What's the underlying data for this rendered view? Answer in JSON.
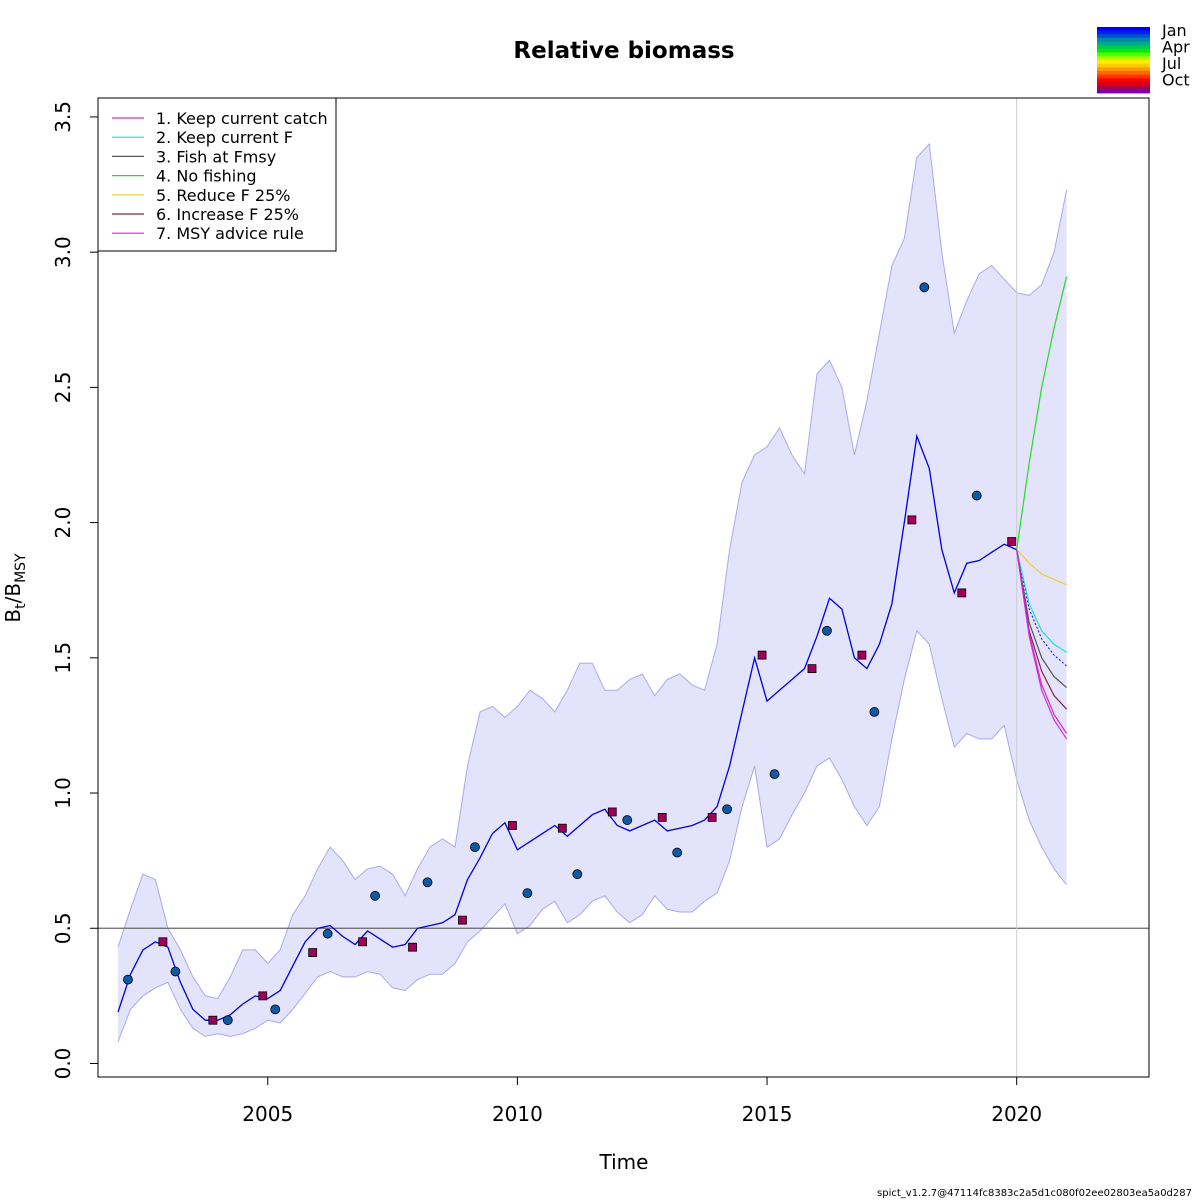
{
  "chart_data": {
    "type": "line",
    "title": "Relative biomass",
    "xlabel": "Time",
    "ylabel_main": "B",
    "ylabel_sub1": "t",
    "ylabel_sep": "/B",
    "ylabel_sub2": "MSY",
    "xlim": [
      2001.6,
      2022.65
    ],
    "ylim": [
      -0.05,
      3.57
    ],
    "x_ticks": [
      2005,
      2010,
      2015,
      2020
    ],
    "x_tick_labels": [
      "2005",
      "2010",
      "2015",
      "2020"
    ],
    "y_ticks": [
      0.0,
      0.5,
      1.0,
      1.5,
      2.0,
      2.5,
      3.0,
      3.5
    ],
    "y_tick_labels": [
      "0.0",
      "0.5",
      "1.0",
      "1.5",
      "2.0",
      "2.5",
      "3.0",
      "3.5"
    ],
    "reference_line": {
      "y": 0.5,
      "color": "#666666"
    },
    "forecast_start": 2020.0,
    "footer": "spict_v1.2.7@47114fc8383c2a5d1c080f02ee02803ea5a0d287",
    "colors": {
      "ci_fill": "#e3e3fb",
      "ci_line": "#a9a9ee",
      "estimate": "#0000dd",
      "circle_fill": "#0d5aa7",
      "square_fill": "#a0005a"
    },
    "estimate": {
      "x": [
        2002.0,
        2002.25,
        2002.5,
        2002.75,
        2003.0,
        2003.25,
        2003.5,
        2003.75,
        2004.0,
        2004.25,
        2004.5,
        2004.75,
        2005.0,
        2005.25,
        2005.5,
        2005.75,
        2006.0,
        2006.25,
        2006.5,
        2006.75,
        2007.0,
        2007.25,
        2007.5,
        2007.75,
        2008.0,
        2008.25,
        2008.5,
        2008.75,
        2009.0,
        2009.25,
        2009.5,
        2009.75,
        2010.0,
        2010.25,
        2010.5,
        2010.75,
        2011.0,
        2011.25,
        2011.5,
        2011.75,
        2012.0,
        2012.25,
        2012.5,
        2012.75,
        2013.0,
        2013.25,
        2013.5,
        2013.75,
        2014.0,
        2014.25,
        2014.5,
        2014.75,
        2015.0,
        2015.25,
        2015.5,
        2015.75,
        2016.0,
        2016.25,
        2016.5,
        2016.75,
        2017.0,
        2017.25,
        2017.5,
        2017.75,
        2018.0,
        2018.25,
        2018.5,
        2018.75,
        2019.0,
        2019.25,
        2019.5,
        2019.75,
        2020.0
      ],
      "y": [
        0.19,
        0.33,
        0.42,
        0.45,
        0.43,
        0.3,
        0.2,
        0.16,
        0.16,
        0.18,
        0.22,
        0.25,
        0.24,
        0.27,
        0.36,
        0.45,
        0.5,
        0.51,
        0.47,
        0.44,
        0.49,
        0.46,
        0.43,
        0.44,
        0.5,
        0.51,
        0.52,
        0.55,
        0.68,
        0.76,
        0.85,
        0.89,
        0.79,
        0.82,
        0.85,
        0.88,
        0.84,
        0.88,
        0.92,
        0.94,
        0.88,
        0.86,
        0.88,
        0.9,
        0.86,
        0.87,
        0.88,
        0.9,
        0.95,
        1.1,
        1.3,
        1.5,
        1.34,
        1.38,
        1.42,
        1.46,
        1.58,
        1.72,
        1.68,
        1.5,
        1.46,
        1.55,
        1.7,
        2.0,
        2.32,
        2.2,
        1.9,
        1.74,
        1.85,
        1.86,
        1.89,
        1.92,
        1.9
      ]
    },
    "ci_upper": {
      "x": [
        2002.0,
        2002.25,
        2002.5,
        2002.75,
        2003.0,
        2003.25,
        2003.5,
        2003.75,
        2004.0,
        2004.25,
        2004.5,
        2004.75,
        2005.0,
        2005.25,
        2005.5,
        2005.75,
        2006.0,
        2006.25,
        2006.5,
        2006.75,
        2007.0,
        2007.25,
        2007.5,
        2007.75,
        2008.0,
        2008.25,
        2008.5,
        2008.75,
        2009.0,
        2009.25,
        2009.5,
        2009.75,
        2010.0,
        2010.25,
        2010.5,
        2010.75,
        2011.0,
        2011.25,
        2011.5,
        2011.75,
        2012.0,
        2012.25,
        2012.5,
        2012.75,
        2013.0,
        2013.25,
        2013.5,
        2013.75,
        2014.0,
        2014.25,
        2014.5,
        2014.75,
        2015.0,
        2015.25,
        2015.5,
        2015.75,
        2016.0,
        2016.25,
        2016.5,
        2016.75,
        2017.0,
        2017.25,
        2017.5,
        2017.75,
        2018.0,
        2018.25,
        2018.5,
        2018.75,
        2019.0,
        2019.25,
        2019.5,
        2019.75,
        2020.0,
        2020.25,
        2020.5,
        2020.75,
        2021.0
      ],
      "y": [
        0.43,
        0.57,
        0.7,
        0.68,
        0.5,
        0.42,
        0.32,
        0.25,
        0.24,
        0.32,
        0.42,
        0.42,
        0.37,
        0.42,
        0.55,
        0.62,
        0.72,
        0.8,
        0.75,
        0.68,
        0.72,
        0.73,
        0.7,
        0.62,
        0.72,
        0.8,
        0.83,
        0.8,
        1.1,
        1.3,
        1.32,
        1.28,
        1.32,
        1.38,
        1.35,
        1.3,
        1.38,
        1.48,
        1.48,
        1.38,
        1.38,
        1.42,
        1.44,
        1.36,
        1.42,
        1.44,
        1.4,
        1.38,
        1.55,
        1.9,
        2.15,
        2.25,
        2.28,
        2.35,
        2.25,
        2.18,
        2.55,
        2.6,
        2.5,
        2.25,
        2.45,
        2.7,
        2.95,
        3.05,
        3.35,
        3.4,
        3.0,
        2.7,
        2.82,
        2.92,
        2.95,
        2.9,
        2.85,
        2.84,
        2.88,
        3.0,
        3.23
      ]
    },
    "ci_lower": {
      "x": [
        2002.0,
        2002.25,
        2002.5,
        2002.75,
        2003.0,
        2003.25,
        2003.5,
        2003.75,
        2004.0,
        2004.25,
        2004.5,
        2004.75,
        2005.0,
        2005.25,
        2005.5,
        2005.75,
        2006.0,
        2006.25,
        2006.5,
        2006.75,
        2007.0,
        2007.25,
        2007.5,
        2007.75,
        2008.0,
        2008.25,
        2008.5,
        2008.75,
        2009.0,
        2009.25,
        2009.5,
        2009.75,
        2010.0,
        2010.25,
        2010.5,
        2010.75,
        2011.0,
        2011.25,
        2011.5,
        2011.75,
        2012.0,
        2012.25,
        2012.5,
        2012.75,
        2013.0,
        2013.25,
        2013.5,
        2013.75,
        2014.0,
        2014.25,
        2014.5,
        2014.75,
        2015.0,
        2015.25,
        2015.5,
        2015.75,
        2016.0,
        2016.25,
        2016.5,
        2016.75,
        2017.0,
        2017.25,
        2017.5,
        2017.75,
        2018.0,
        2018.25,
        2018.5,
        2018.75,
        2019.0,
        2019.25,
        2019.5,
        2019.75,
        2020.0,
        2020.25,
        2020.5,
        2020.75,
        2021.0
      ],
      "y": [
        0.08,
        0.2,
        0.25,
        0.28,
        0.3,
        0.2,
        0.13,
        0.1,
        0.11,
        0.1,
        0.11,
        0.13,
        0.16,
        0.15,
        0.2,
        0.26,
        0.32,
        0.34,
        0.32,
        0.32,
        0.34,
        0.33,
        0.28,
        0.27,
        0.31,
        0.33,
        0.33,
        0.37,
        0.45,
        0.49,
        0.54,
        0.59,
        0.48,
        0.51,
        0.57,
        0.6,
        0.52,
        0.55,
        0.6,
        0.62,
        0.56,
        0.52,
        0.55,
        0.62,
        0.57,
        0.56,
        0.56,
        0.6,
        0.63,
        0.75,
        0.95,
        1.1,
        0.8,
        0.83,
        0.92,
        1.0,
        1.1,
        1.13,
        1.05,
        0.95,
        0.88,
        0.95,
        1.2,
        1.42,
        1.6,
        1.55,
        1.35,
        1.17,
        1.22,
        1.2,
        1.2,
        1.25,
        1.05,
        0.9,
        0.8,
        0.72,
        0.66
      ]
    },
    "observations_circles": {
      "x": [
        2002.2,
        2003.15,
        2004.2,
        2005.15,
        2006.2,
        2007.15,
        2008.2,
        2009.15,
        2010.2,
        2011.2,
        2012.2,
        2013.2,
        2014.2,
        2015.15,
        2016.2,
        2017.15,
        2018.15,
        2019.2
      ],
      "y": [
        0.31,
        0.34,
        0.16,
        0.2,
        0.48,
        0.62,
        0.67,
        0.8,
        0.63,
        0.7,
        0.9,
        0.78,
        0.94,
        1.07,
        1.6,
        1.3,
        2.87,
        2.1
      ]
    },
    "observations_squares": {
      "x": [
        2002.9,
        2003.9,
        2004.9,
        2005.9,
        2006.9,
        2007.9,
        2008.9,
        2009.9,
        2010.9,
        2011.9,
        2012.9,
        2013.9,
        2014.9,
        2015.9,
        2016.9,
        2017.9,
        2018.9,
        2019.9
      ],
      "y": [
        0.45,
        0.16,
        0.25,
        0.41,
        0.45,
        0.43,
        0.53,
        0.88,
        0.87,
        0.93,
        0.91,
        0.91,
        1.51,
        1.46,
        1.51,
        2.01,
        1.74,
        1.93
      ]
    },
    "forecast_x": [
      2020.0,
      2020.25,
      2020.5,
      2020.75,
      2021.0
    ],
    "series": [
      {
        "name": "1. Keep current catch",
        "color": "#cc33cc",
        "dashed": false,
        "values": [
          1.9,
          1.58,
          1.38,
          1.27,
          1.2
        ]
      },
      {
        "name": "2. Keep current F",
        "color": "#22dddd",
        "dashed": false,
        "values": [
          1.9,
          1.7,
          1.6,
          1.55,
          1.52
        ]
      },
      {
        "name": "3. Fish at Fmsy",
        "color": "#555555",
        "dashed": false,
        "values": [
          1.9,
          1.63,
          1.5,
          1.43,
          1.39
        ]
      },
      {
        "name": "4. No fishing",
        "color": "#22dd22",
        "dashed": false,
        "values": [
          1.9,
          2.22,
          2.5,
          2.72,
          2.91
        ]
      },
      {
        "name": "5. Reduce F 25%",
        "color": "#eecc33",
        "dashed": false,
        "values": [
          1.9,
          1.85,
          1.81,
          1.79,
          1.77
        ]
      },
      {
        "name": "6. Increase F 25%",
        "color": "#882244",
        "dashed": false,
        "values": [
          1.9,
          1.6,
          1.45,
          1.36,
          1.31
        ]
      },
      {
        "name": "7. MSY advice rule",
        "color": "#dd22dd",
        "dashed": false,
        "values": [
          1.9,
          1.59,
          1.4,
          1.29,
          1.22
        ]
      }
    ],
    "baseline_forecast": {
      "name": "",
      "color": "#0000dd",
      "dashed": true,
      "values": [
        1.9,
        1.68,
        1.57,
        1.51,
        1.47
      ]
    },
    "season_legend": {
      "labels": [
        "Jan",
        "Apr",
        "Jul",
        "Oct"
      ],
      "colors": [
        "#0000ff",
        "#0022ee",
        "#0055cc",
        "#0088aa",
        "#00aa88",
        "#00cc44",
        "#00ee00",
        "#55ff00",
        "#aaff00",
        "#ffee00",
        "#ffcc00",
        "#ff9900",
        "#ff6600",
        "#ff3300",
        "#ff0000",
        "#dd0011",
        "#aa0055",
        "#7700aa"
      ]
    }
  }
}
